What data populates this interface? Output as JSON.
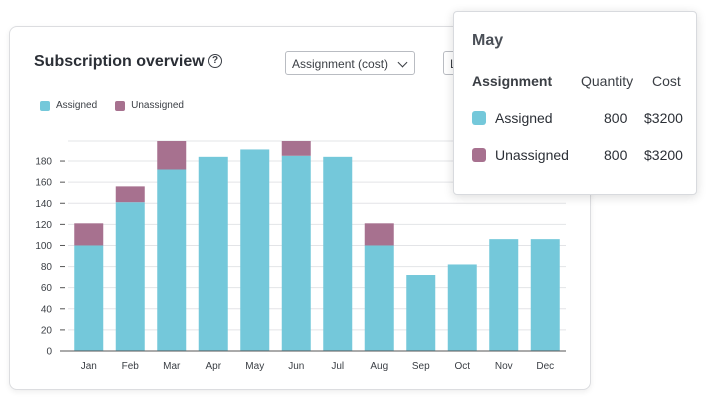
{
  "header": {
    "title": "Subscription overview",
    "help_icon": "question-circle-icon",
    "help_glyph": "?",
    "select_value": "Assignment (cost)",
    "select2_value": "L"
  },
  "tooltip": {
    "title": "May",
    "columns": [
      "Assignment",
      "Quantity",
      "Cost"
    ],
    "rows": [
      {
        "label": "Assigned",
        "quantity": "800",
        "cost": "$3200",
        "color": "#74c8da"
      },
      {
        "label": "Unassigned",
        "quantity": "800",
        "cost": "$3200",
        "color": "#a7718f"
      }
    ]
  },
  "chart_data": {
    "type": "bar",
    "stacked": true,
    "categories": [
      "Jan",
      "Feb",
      "Mar",
      "Apr",
      "May",
      "Jun",
      "Jul",
      "Aug",
      "Sep",
      "Oct",
      "Nov",
      "Dec"
    ],
    "series": [
      {
        "name": "Assigned",
        "color": "#74c8da",
        "values": [
          100,
          141,
          172,
          184,
          191,
          185,
          184,
          100,
          72,
          82,
          106,
          106
        ]
      },
      {
        "name": "Unassigned",
        "color": "#a7718f",
        "values": [
          21,
          15,
          27,
          0,
          0,
          14,
          0,
          21,
          0,
          0,
          0,
          0
        ]
      }
    ],
    "yticks": [
      "0",
      "20",
      "40",
      "60",
      "80",
      "100",
      "120",
      "140",
      "160",
      "180"
    ],
    "ylim": [
      0,
      199
    ],
    "grid": true,
    "legend_position": "top-left"
  }
}
